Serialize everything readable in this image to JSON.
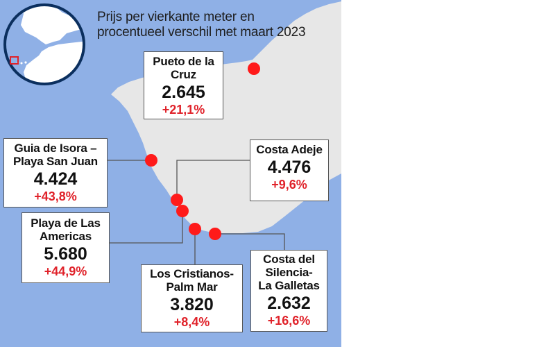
{
  "title": {
    "line1": "Prijs per vierkante meter en",
    "line2": "procentueel verschil met maart 2023"
  },
  "colors": {
    "sea": "#8fb0e6",
    "land": "#e7e7e7",
    "marker": "#ff1a1a",
    "change_text": "#e0222a",
    "locator_circle": "#0b2f5e"
  },
  "inset_map": {
    "name": "locator-map",
    "icon": "highlight-rectangle"
  },
  "locations": [
    {
      "id": "puerto-de-la-cruz",
      "name_line1": "Pueto de la",
      "name_line2": "Cruz",
      "price": "2.645",
      "change": "+21,1%"
    },
    {
      "id": "guia-de-isora",
      "name_line1": "Guia de Isora –",
      "name_line2": "Playa San Juan",
      "price": "4.424",
      "change": "+43,8%"
    },
    {
      "id": "costa-adeje",
      "name_line1": "Costa Adeje",
      "name_line2": "",
      "price": "4.476",
      "change": "+9,6%"
    },
    {
      "id": "playa-de-las-americas",
      "name_line1": "Playa de Las",
      "name_line2": "Americas",
      "price": "5.680",
      "change": "+44,9%"
    },
    {
      "id": "los-cristianos",
      "name_line1": "Los Cristianos-",
      "name_line2": "Palm Mar",
      "price": "3.820",
      "change": "+8,4%"
    },
    {
      "id": "costa-del-silencio",
      "name_line1": "Costa del",
      "name_line2": "Silencia-",
      "name_line3": "La Galletas",
      "price": "2.632",
      "change": "+16,6%"
    }
  ]
}
